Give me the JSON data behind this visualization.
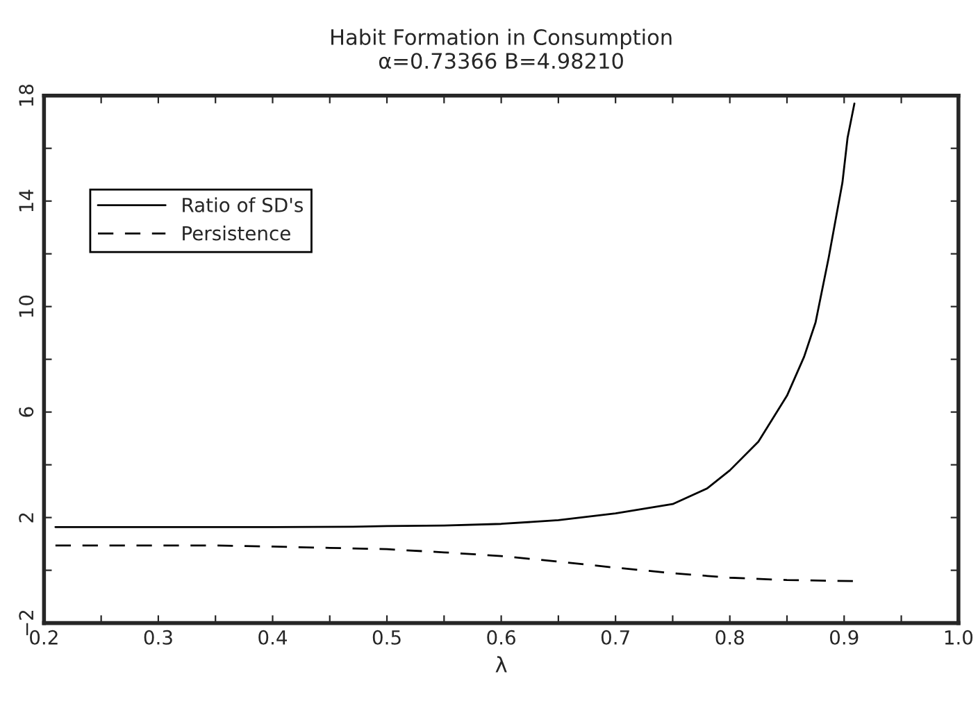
{
  "chart_data": {
    "type": "line",
    "title": "Habit Formation in Consumption",
    "subtitle": "α=0.73366 B=4.98210",
    "xlabel": "λ",
    "xlim": [
      0.2,
      1.0
    ],
    "ylim": [
      -2,
      18
    ],
    "xticks": [
      0.2,
      {
        "value": 0.25,
        "label": null
      },
      0.3,
      {
        "value": 0.35,
        "label": null
      },
      0.4,
      {
        "value": 0.45,
        "label": null
      },
      0.5,
      {
        "value": 0.55,
        "label": null
      },
      0.6,
      {
        "value": 0.65,
        "label": null
      },
      0.7,
      {
        "value": 0.75,
        "label": null
      },
      0.8,
      {
        "value": 0.85,
        "label": null
      },
      0.9,
      {
        "value": 0.95,
        "label": null
      },
      {
        "value": 1.0,
        "label": "1.0"
      }
    ],
    "yticks": [
      {
        "value": -2,
        "label": "−2"
      },
      {
        "value": 0,
        "label": null
      },
      2,
      {
        "value": 4,
        "label": null
      },
      6,
      {
        "value": 8,
        "label": null
      },
      10,
      {
        "value": 12,
        "label": null
      },
      14,
      {
        "value": 16,
        "label": null
      },
      18
    ],
    "grid": false,
    "legend": "top left",
    "series": [
      {
        "name": "Ratio of SD's",
        "color": "#000000",
        "line_style": "solid",
        "x": [
          0.21,
          0.3,
          0.4,
          0.47,
          0.5,
          0.55,
          0.6,
          0.65,
          0.7,
          0.75,
          0.78,
          0.8,
          0.825,
          0.85,
          0.865,
          0.875,
          0.8865,
          0.8985,
          0.903,
          0.909
        ],
        "values": [
          1.64,
          1.64,
          1.64,
          1.65,
          1.68,
          1.7,
          1.76,
          1.9,
          2.16,
          2.51,
          3.1,
          3.79,
          4.88,
          6.62,
          8.1,
          9.4,
          11.86,
          14.7,
          16.4,
          17.7
        ]
      },
      {
        "name": "Persistence",
        "color": "#000000",
        "line_style": "dashed",
        "x": [
          0.21,
          0.3,
          0.35,
          0.4,
          0.45,
          0.5,
          0.55,
          0.6,
          0.65,
          0.7,
          0.75,
          0.8,
          0.85,
          0.91
        ],
        "values": [
          0.94,
          0.94,
          0.94,
          0.9,
          0.85,
          0.8,
          0.68,
          0.54,
          0.33,
          0.1,
          -0.11,
          -0.28,
          -0.37,
          -0.41
        ]
      }
    ]
  }
}
